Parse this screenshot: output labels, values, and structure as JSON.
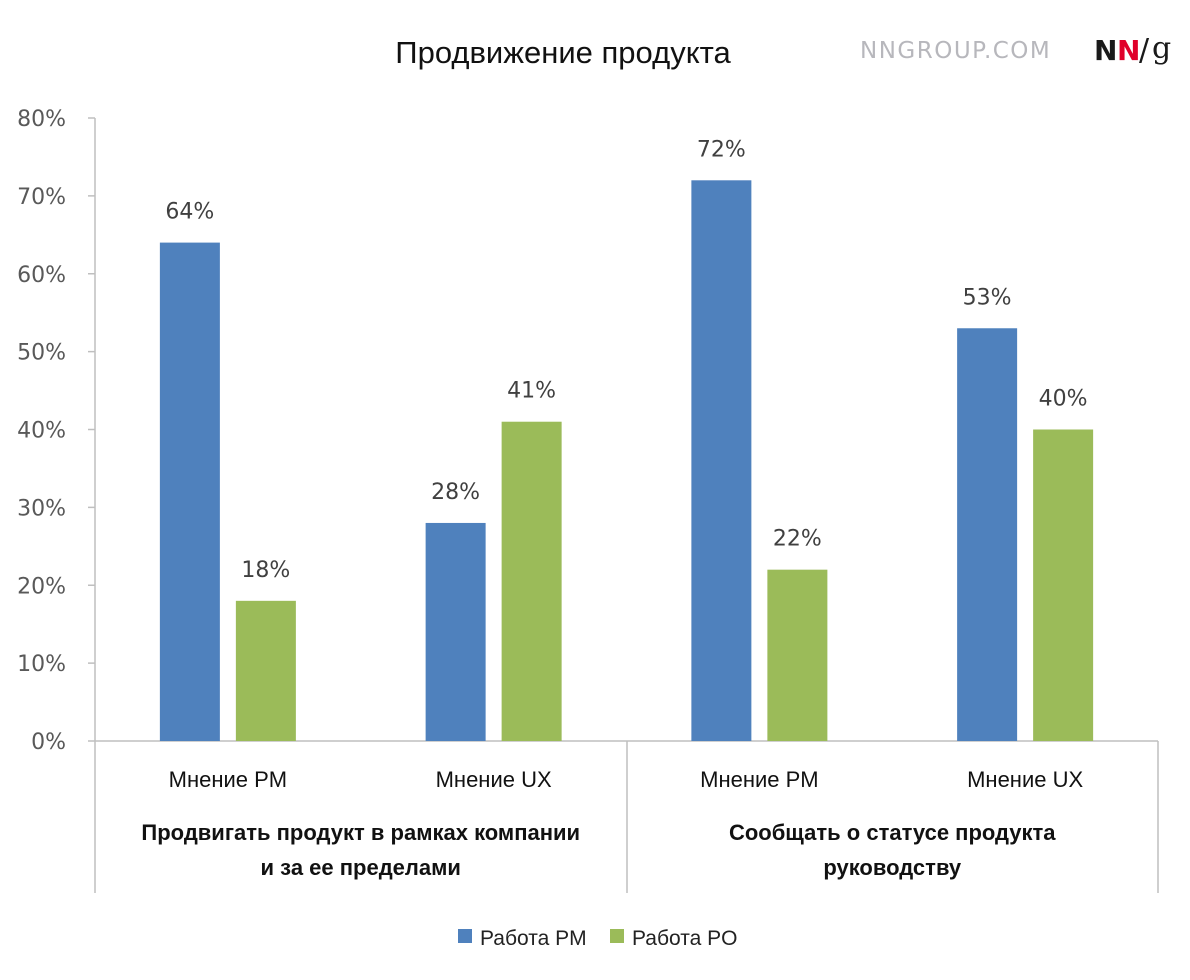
{
  "header": {
    "brand_text": "NNGROUP.COM",
    "logo": {
      "n1": "N",
      "n2": "N",
      "slash": "/",
      "g": "g"
    }
  },
  "chart_data": {
    "type": "bar",
    "title": "Продвижение продукта",
    "xlabel": "",
    "ylabel": "",
    "ylim": [
      0,
      80
    ],
    "y_ticks": [
      "0%",
      "10%",
      "20%",
      "30%",
      "40%",
      "50%",
      "60%",
      "70%",
      "80%"
    ],
    "grid": false,
    "legend_position": "bottom",
    "categories": [
      "Мнение PM",
      "Мнение UX",
      "Мнение PM",
      "Мнение UX"
    ],
    "groups": [
      {
        "lines": [
          "Продвигать продукт в рамках компании",
          "и за ее пределами"
        ]
      },
      {
        "lines": [
          "Сообщать о статусе продукта",
          "руководству"
        ]
      }
    ],
    "series": [
      {
        "name": "Работа PM",
        "color": "#4f81bd",
        "values": [
          64,
          28,
          72,
          53
        ],
        "labels": [
          "64%",
          "28%",
          "72%",
          "53%"
        ]
      },
      {
        "name": "Работа PO",
        "color": "#9bbb59",
        "values": [
          18,
          41,
          22,
          40
        ],
        "labels": [
          "18%",
          "41%",
          "22%",
          "40%"
        ]
      }
    ]
  }
}
